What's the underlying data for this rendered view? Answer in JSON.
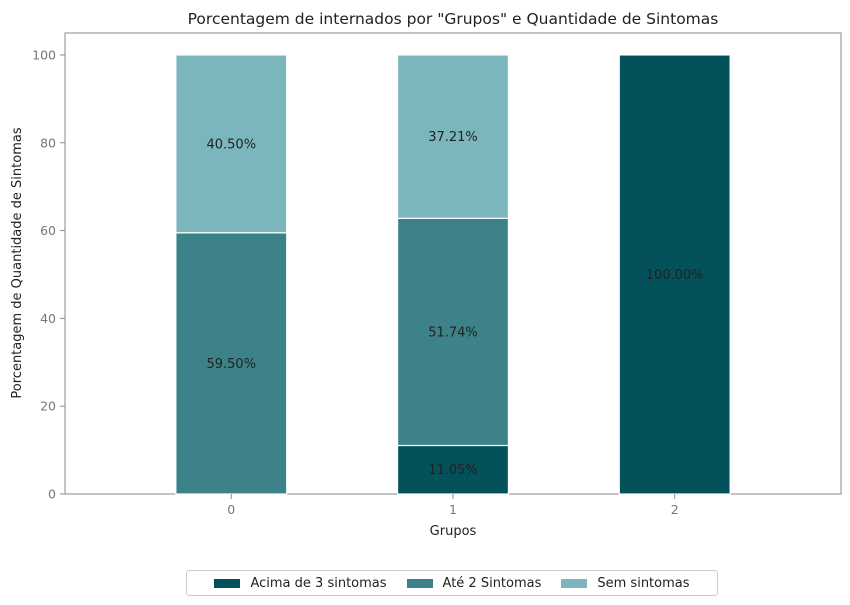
{
  "chart_data": {
    "type": "bar",
    "stacked": true,
    "title": "Porcentagem de internados por \"Grupos\" e Quantidade de Sintomas",
    "xlabel": "Grupos",
    "ylabel": "Porcentagem de Quantidade de Sintomas",
    "categories": [
      "0",
      "1",
      "2"
    ],
    "ylim": [
      0,
      105
    ],
    "yticks": [
      0,
      20,
      40,
      60,
      80,
      100
    ],
    "grid": false,
    "legend_position": "bottom-center",
    "series": [
      {
        "name": "Acima de 3 sintomas",
        "color": "#03515a",
        "values": [
          0,
          11.05,
          100.0
        ],
        "labels": [
          "",
          "11.05%",
          "100.00%"
        ]
      },
      {
        "name": "Até 2 Sintomas",
        "color": "#3d8289",
        "values": [
          59.5,
          51.74,
          0
        ],
        "labels": [
          "59.50%",
          "51.74%",
          ""
        ]
      },
      {
        "name": "Sem sintomas",
        "color": "#7bb6bd",
        "values": [
          40.5,
          37.21,
          0
        ],
        "labels": [
          "40.50%",
          "37.21%",
          ""
        ]
      }
    ]
  }
}
